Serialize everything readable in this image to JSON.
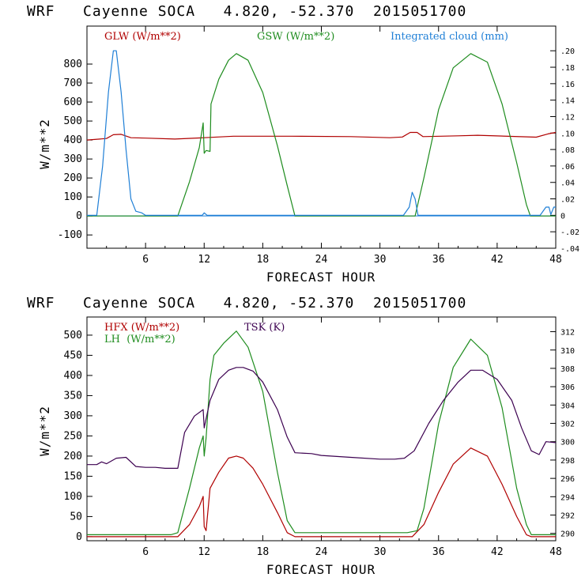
{
  "colors": {
    "red": "#b00000",
    "green": "#1e8c1e",
    "blue": "#1f7fd6",
    "purple": "#3c0050",
    "axis": "#000000"
  },
  "chart_data": [
    {
      "type": "line",
      "title": "WRF   Cayenne SOCA   4.820, -52.370  2015051700",
      "xlabel": "FORECAST HOUR",
      "ylabel": "W/m**2",
      "xlim": [
        0,
        48
      ],
      "ylim": [
        -170,
        1000
      ],
      "ylim_right": [
        -0.04,
        0.23
      ],
      "x_ticks": [
        "6",
        "12",
        "18",
        "24",
        "30",
        "36",
        "42",
        "48"
      ],
      "y_ticks": [
        "-100",
        "0",
        "100",
        "200",
        "300",
        "400",
        "500",
        "600",
        "700",
        "800"
      ],
      "y2_ticks": [
        "-.04",
        "-.02",
        "0",
        ".02",
        ".04",
        ".06",
        ".08",
        ".10",
        ".12",
        ".14",
        ".16",
        ".18",
        ".20"
      ],
      "legend": [
        "GLW (W/m**2)",
        "GSW (W/m**2)",
        "Integrated cloud (mm)"
      ],
      "series": [
        {
          "name": "GLW (W/m**2)",
          "color": "red",
          "axis": "left",
          "x": [
            0,
            2,
            2.7,
            3.5,
            4.5,
            6,
            9,
            12,
            15,
            21,
            27,
            31,
            32.3,
            33.1,
            33.8,
            34.4,
            38,
            40,
            46,
            47.2,
            48
          ],
          "y": [
            400,
            408,
            428,
            430,
            412,
            410,
            405,
            412,
            420,
            420,
            418,
            412,
            416,
            440,
            440,
            418,
            422,
            425,
            415,
            432,
            440
          ]
        },
        {
          "name": "GSW (W/m**2)",
          "color": "green",
          "axis": "left",
          "x": [
            0,
            9.3,
            10.5,
            11.5,
            11.9,
            12.0,
            12.2,
            12.6,
            12.7,
            13.5,
            14.5,
            15.3,
            16.5,
            18,
            19.5,
            20.5,
            21.3,
            33.6,
            34.5,
            36,
            37.5,
            39.3,
            41,
            42.5,
            44,
            45,
            45.4,
            48
          ],
          "y": [
            0,
            0,
            180,
            360,
            490,
            330,
            345,
            340,
            590,
            720,
            820,
            855,
            820,
            650,
            370,
            160,
            0,
            0,
            200,
            560,
            780,
            855,
            810,
            590,
            280,
            60,
            0,
            0
          ],
          "steps": true
        },
        {
          "name": "Integrated cloud (mm)",
          "color": "blue",
          "axis": "right",
          "x": [
            0,
            1.0,
            1.6,
            2.2,
            2.7,
            3.0,
            3.5,
            4.0,
            4.5,
            5.0,
            5.6,
            6.0,
            11.8,
            12.0,
            12.3,
            32.4,
            33.0,
            33.3,
            33.6,
            33.9,
            46.4,
            47.0,
            47.3,
            47.5,
            47.8,
            48
          ],
          "y": [
            0,
            0,
            0.06,
            0.15,
            0.2,
            0.2,
            0.15,
            0.08,
            0.02,
            0.005,
            0.003,
            0,
            0,
            0.003,
            0,
            0,
            0.01,
            0.028,
            0.02,
            0,
            0,
            0.01,
            0.01,
            0.001,
            0.01,
            0.01
          ]
        }
      ]
    },
    {
      "type": "line",
      "title": "WRF   Cayenne SOCA   4.820, -52.370  2015051700",
      "xlabel": "FORECAST HOUR",
      "ylabel": "W/m**2",
      "xlim": [
        0,
        48
      ],
      "ylim": [
        -10,
        545
      ],
      "ylim_right": [
        289.2,
        313.6
      ],
      "x_ticks": [
        "6",
        "12",
        "18",
        "24",
        "30",
        "36",
        "42",
        "48"
      ],
      "y_ticks": [
        "0",
        "50",
        "100",
        "150",
        "200",
        "250",
        "300",
        "350",
        "400",
        "450",
        "500"
      ],
      "y2_ticks": [
        "290",
        "292",
        "294",
        "296",
        "298",
        "300",
        "302",
        "304",
        "306",
        "308",
        "310",
        "312"
      ],
      "legend": [
        "HFX (W/m**2)",
        "LH  (W/m**2)",
        "TSK (K)"
      ],
      "series": [
        {
          "name": "HFX (W/m**2)",
          "color": "red",
          "axis": "left",
          "x": [
            0,
            9.3,
            10.5,
            11.5,
            11.9,
            12.0,
            12.2,
            12.6,
            13.5,
            14.5,
            15.3,
            16,
            17,
            18,
            19.5,
            20.5,
            21.3,
            33.3,
            34.5,
            36,
            37.5,
            39.3,
            41,
            42.5,
            44,
            45,
            45.5,
            48
          ],
          "y": [
            0,
            0,
            30,
            75,
            100,
            25,
            15,
            120,
            160,
            195,
            200,
            195,
            170,
            130,
            60,
            10,
            0,
            0,
            30,
            110,
            180,
            220,
            200,
            130,
            50,
            5,
            0,
            0
          ]
        },
        {
          "name": "LH  (W/m**2)",
          "color": "green",
          "axis": "left",
          "x": [
            0,
            8.6,
            9.3,
            10.5,
            11.5,
            11.9,
            12.0,
            12.2,
            12.6,
            13.0,
            14.0,
            15.3,
            16.5,
            18,
            19.5,
            20.5,
            21.3,
            32.8,
            33.8,
            34.5,
            36,
            37.5,
            39.3,
            41,
            42.5,
            44,
            45,
            45.5,
            48
          ],
          "y": [
            5,
            5,
            10,
            120,
            220,
            250,
            200,
            245,
            390,
            450,
            480,
            510,
            470,
            360,
            160,
            40,
            10,
            10,
            15,
            70,
            280,
            420,
            490,
            450,
            320,
            120,
            30,
            5,
            5
          ]
        },
        {
          "name": "TSK (K)",
          "color": "purple",
          "axis": "right",
          "x": [
            0,
            1.0,
            1.5,
            2.0,
            2.5,
            3.0,
            4.0,
            5.0,
            6.0,
            7.0,
            8.0,
            9.3,
            10.0,
            11.0,
            11.9,
            12.0,
            12.2,
            12.6,
            13.5,
            14.5,
            15.3,
            16,
            17,
            18,
            19.5,
            20.5,
            21.3,
            23,
            24,
            27,
            30,
            31.5,
            32.5,
            33.5,
            35,
            36.5,
            38,
            39.3,
            40.5,
            42,
            43.5,
            44.5,
            45.5,
            46.3,
            47,
            48
          ],
          "y": [
            297.5,
            297.5,
            297.8,
            297.6,
            297.9,
            298.2,
            298.3,
            297.3,
            297.2,
            297.2,
            297.1,
            297.1,
            301.0,
            302.8,
            303.5,
            301.5,
            302.5,
            304.5,
            306.8,
            307.8,
            308.1,
            308.1,
            307.7,
            306.5,
            303.5,
            300.5,
            298.8,
            298.7,
            298.5,
            298.3,
            298.1,
            298.1,
            298.2,
            299.0,
            302.0,
            304.5,
            306.5,
            307.8,
            307.8,
            306.8,
            304.5,
            301.5,
            299.0,
            298.6,
            300.0,
            299.9
          ]
        }
      ]
    }
  ]
}
